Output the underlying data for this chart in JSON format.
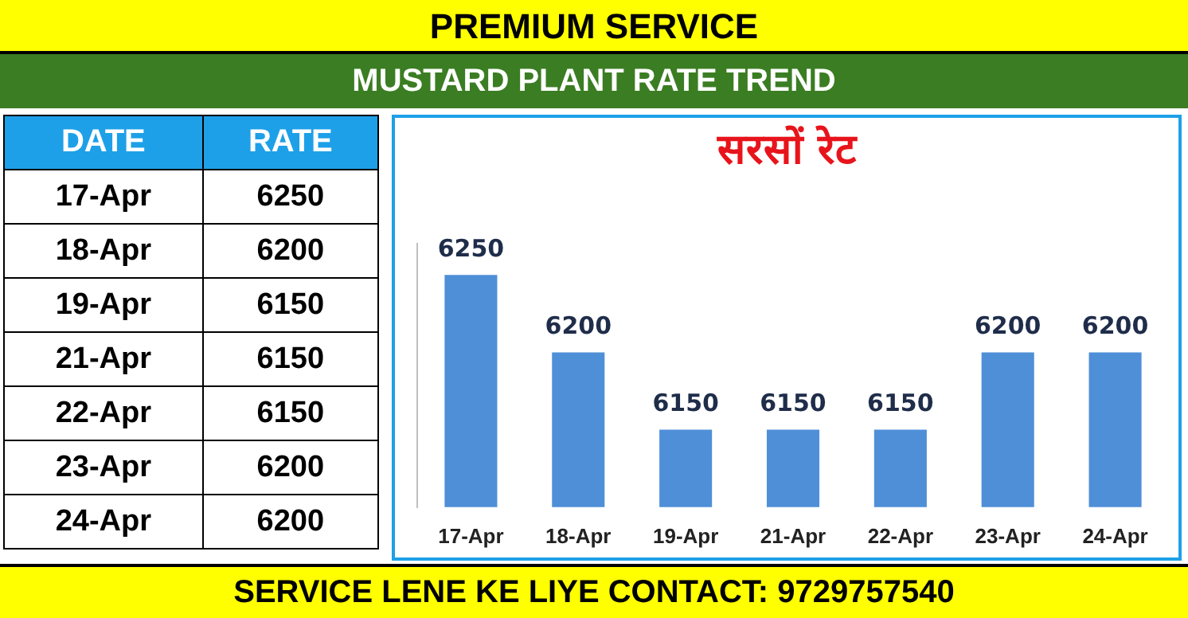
{
  "chart_data": {
    "type": "bar",
    "title": "सरसों रेट",
    "subtitle": "MUSTARD PLANT RATE TREND",
    "annotations": [
      "PREMIUM SERVICE",
      "DATE",
      "RATE",
      "SERVICE LENE KE LIYE CONTACT: 9729757540"
    ],
    "categories": [
      "17-Apr",
      "18-Apr",
      "19-Apr",
      "21-Apr",
      "22-Apr",
      "23-Apr",
      "24-Apr"
    ],
    "values": [
      6250,
      6200,
      6150,
      6150,
      6150,
      6200,
      6200
    ],
    "color": "#4f8fd8",
    "ylim": [
      6100,
      6270
    ],
    "tick_labels": "x",
    "grid": false,
    "legend": false,
    "value_labels": [
      "6250",
      "6200",
      "6150",
      "6150",
      "6150",
      "6200",
      "6200"
    ]
  }
}
